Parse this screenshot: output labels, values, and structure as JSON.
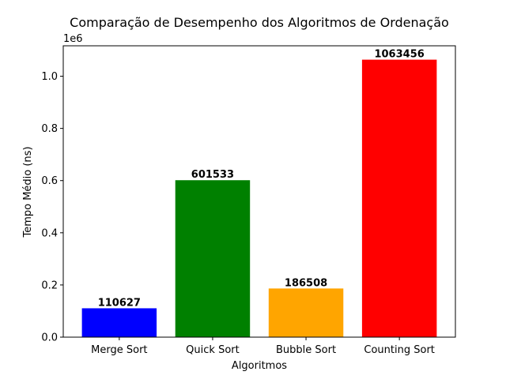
{
  "chart_data": {
    "type": "bar",
    "title": "Comparação de Desempenho dos Algoritmos de Ordenação",
    "xlabel": "Algoritmos",
    "ylabel": "Tempo Médio (ns)",
    "y_offset_text": "1e6",
    "categories": [
      "Merge Sort",
      "Quick Sort",
      "Bubble Sort",
      "Counting Sort"
    ],
    "values": [
      110627,
      601533,
      186508,
      1063456
    ],
    "data_labels": [
      "110627",
      "601533",
      "186508",
      "1063456"
    ],
    "colors": [
      "#0000ff",
      "#008000",
      "#ffa500",
      "#ff0000"
    ],
    "ylim": [
      0,
      1116629
    ],
    "yticks": [
      0,
      200000,
      400000,
      600000,
      800000,
      1000000
    ],
    "ytick_labels": [
      "0.0",
      "0.2",
      "0.4",
      "0.6",
      "0.8",
      "1.0"
    ],
    "grid": false,
    "legend": "none"
  }
}
